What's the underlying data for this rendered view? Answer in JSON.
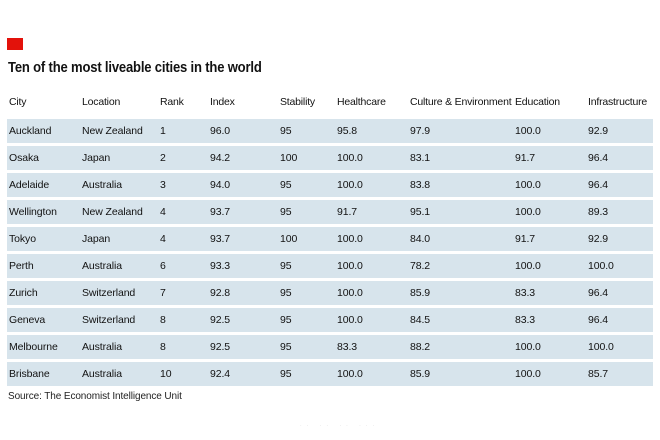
{
  "title": "Ten of the most liveable cities in the world",
  "source": "Source: The Economist Intelligence Unit",
  "faint_marks": "·· ·· ·· ···",
  "colors": {
    "accent_red": "#E3120B",
    "row_bg": "#D7E4EC",
    "text": "#121212"
  },
  "chart_data": {
    "type": "table",
    "title": "Ten of the most liveable cities in the world",
    "source": "Source: The Economist Intelligence Unit",
    "columns": [
      "City",
      "Location",
      "Rank",
      "Index",
      "Stability",
      "Healthcare",
      "Culture & Environment",
      "Education",
      "Infrastructure"
    ],
    "rows": [
      [
        "Auckland",
        "New Zealand",
        "1",
        "96.0",
        "95",
        "95.8",
        "97.9",
        "100.0",
        "92.9"
      ],
      [
        "Osaka",
        "Japan",
        "2",
        "94.2",
        "100",
        "100.0",
        "83.1",
        "91.7",
        "96.4"
      ],
      [
        "Adelaide",
        "Australia",
        "3",
        "94.0",
        "95",
        "100.0",
        "83.8",
        "100.0",
        "96.4"
      ],
      [
        "Wellington",
        "New Zealand",
        "4",
        "93.7",
        "95",
        "91.7",
        "95.1",
        "100.0",
        "89.3"
      ],
      [
        "Tokyo",
        "Japan",
        "4",
        "93.7",
        "100",
        "100.0",
        "84.0",
        "91.7",
        "92.9"
      ],
      [
        "Perth",
        "Australia",
        "6",
        "93.3",
        "95",
        "100.0",
        "78.2",
        "100.0",
        "100.0"
      ],
      [
        "Zurich",
        "Switzerland",
        "7",
        "92.8",
        "95",
        "100.0",
        "85.9",
        "83.3",
        "96.4"
      ],
      [
        "Geneva",
        "Switzerland",
        "8",
        "92.5",
        "95",
        "100.0",
        "84.5",
        "83.3",
        "96.4"
      ],
      [
        "Melbourne",
        "Australia",
        "8",
        "92.5",
        "95",
        "83.3",
        "88.2",
        "100.0",
        "100.0"
      ],
      [
        "Brisbane",
        "Australia",
        "10",
        "92.4",
        "95",
        "100.0",
        "85.9",
        "100.0",
        "85.7"
      ]
    ]
  }
}
